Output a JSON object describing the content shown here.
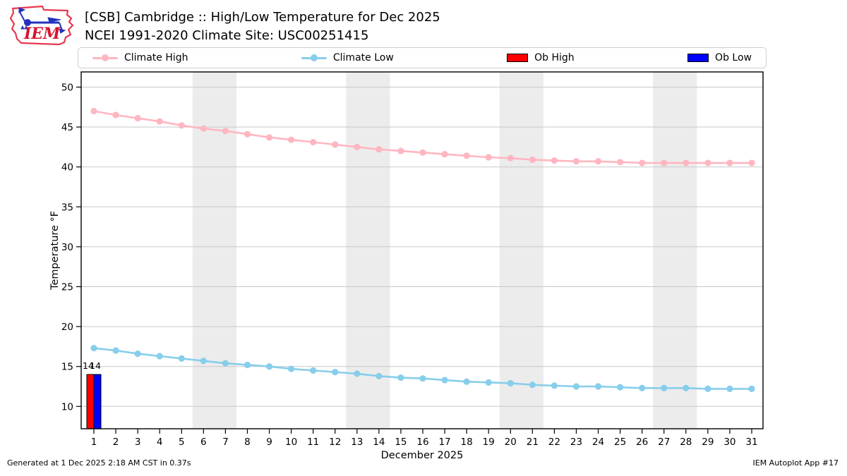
{
  "header": {
    "title_line1": "[CSB] Cambridge :: High/Low Temperature for Dec 2025",
    "title_line2": "NCEI 1991-2020 Climate Site: USC00251415",
    "logo_text": "IEM"
  },
  "legend": {
    "items": [
      {
        "label": "Climate High",
        "swatch": "line",
        "color": "#ffb6c1"
      },
      {
        "label": "Climate Low",
        "swatch": "line",
        "color": "#87ceeb"
      },
      {
        "label": "Ob High",
        "swatch": "rect",
        "color": "#ff0000"
      },
      {
        "label": "Ob Low",
        "swatch": "rect",
        "color": "#0000ff"
      }
    ]
  },
  "chart_data": {
    "type": "line",
    "title": "[CSB] Cambridge :: High/Low Temperature for Dec 2025",
    "subtitle": "NCEI 1991-2020 Climate Site: USC00251415",
    "xlabel": "December 2025",
    "ylabel": "Temperature °F",
    "x": [
      1,
      2,
      3,
      4,
      5,
      6,
      7,
      8,
      9,
      10,
      11,
      12,
      13,
      14,
      15,
      16,
      17,
      18,
      19,
      20,
      21,
      22,
      23,
      24,
      25,
      26,
      27,
      28,
      29,
      30,
      31
    ],
    "series": [
      {
        "name": "Climate High",
        "type": "line",
        "color": "#ffb6c1",
        "values": [
          47.0,
          46.5,
          46.1,
          45.7,
          45.2,
          44.8,
          44.5,
          44.1,
          43.7,
          43.4,
          43.1,
          42.8,
          42.5,
          42.2,
          42.0,
          41.8,
          41.6,
          41.4,
          41.2,
          41.1,
          40.9,
          40.8,
          40.7,
          40.7,
          40.6,
          40.5,
          40.5,
          40.5,
          40.5,
          40.5,
          40.5
        ]
      },
      {
        "name": "Climate Low",
        "type": "line",
        "color": "#87ceeb",
        "values": [
          17.3,
          17.0,
          16.6,
          16.3,
          16.0,
          15.7,
          15.4,
          15.2,
          15.0,
          14.7,
          14.5,
          14.3,
          14.1,
          13.8,
          13.6,
          13.5,
          13.3,
          13.1,
          13.0,
          12.9,
          12.7,
          12.6,
          12.5,
          12.5,
          12.4,
          12.3,
          12.3,
          12.3,
          12.2,
          12.2,
          12.2
        ]
      },
      {
        "name": "Ob High",
        "type": "bar",
        "color": "#ff0000",
        "bar_label": "14",
        "values": [
          14,
          null,
          null,
          null,
          null,
          null,
          null,
          null,
          null,
          null,
          null,
          null,
          null,
          null,
          null,
          null,
          null,
          null,
          null,
          null,
          null,
          null,
          null,
          null,
          null,
          null,
          null,
          null,
          null,
          null,
          null
        ]
      },
      {
        "name": "Ob Low",
        "type": "bar",
        "color": "#0000ff",
        "bar_label": "14",
        "values": [
          14,
          null,
          null,
          null,
          null,
          null,
          null,
          null,
          null,
          null,
          null,
          null,
          null,
          null,
          null,
          null,
          null,
          null,
          null,
          null,
          null,
          null,
          null,
          null,
          null,
          null,
          null,
          null,
          null,
          null,
          null
        ]
      }
    ],
    "ylim": [
      7.2,
      51.9
    ],
    "yticks": [
      10,
      15,
      20,
      25,
      30,
      35,
      40,
      45,
      50
    ],
    "xticks": [
      1,
      2,
      3,
      4,
      5,
      6,
      7,
      8,
      9,
      10,
      11,
      12,
      13,
      14,
      15,
      16,
      17,
      18,
      19,
      20,
      21,
      22,
      23,
      24,
      25,
      26,
      27,
      28,
      29,
      30,
      31
    ],
    "grid": true,
    "grid_color": "#c8c8c8",
    "weekend_band_color": "#ececec",
    "weekend_bands": [
      [
        5.5,
        7.5
      ],
      [
        12.5,
        14.5
      ],
      [
        19.5,
        21.5
      ],
      [
        26.5,
        28.5
      ]
    ],
    "legend_position": "top"
  },
  "footer": {
    "left": "Generated at 1 Dec 2025 2:18 AM CST in 0.37s",
    "right": "IEM Autoplot App #17"
  }
}
